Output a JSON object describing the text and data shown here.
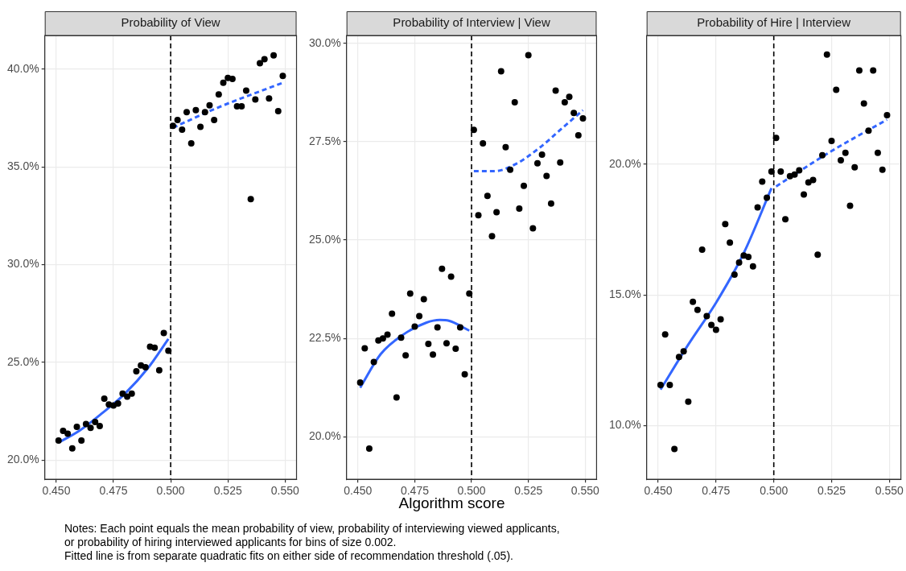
{
  "chart_data": [
    {
      "type": "scatter",
      "title": "Probability of View",
      "xlim": [
        0.445,
        0.555
      ],
      "ylim": [
        19.02,
        41.72
      ],
      "xticks": [
        {
          "value": 0.45,
          "label": "0.450"
        },
        {
          "value": 0.475,
          "label": "0.475"
        },
        {
          "value": 0.5,
          "label": "0.500"
        },
        {
          "value": 0.525,
          "label": "0.525"
        },
        {
          "value": 0.55,
          "label": "0.550"
        }
      ],
      "yticks": [
        {
          "value": 20,
          "label": "20.0%"
        },
        {
          "value": 25,
          "label": "25.0%"
        },
        {
          "value": 30,
          "label": "30.0%"
        },
        {
          "value": 35,
          "label": "35.0%"
        },
        {
          "value": 40,
          "label": "40.0%"
        }
      ],
      "grid": true,
      "legend": false,
      "marker": "circle",
      "ref_lines": [
        {
          "axis": "x",
          "value": 0.5,
          "color": "#000000",
          "line_style": "dashed"
        }
      ],
      "series": [
        {
          "color": "#000000",
          "x": [
            0.451,
            0.453,
            0.455,
            0.457,
            0.459,
            0.461,
            0.463,
            0.465,
            0.467,
            0.469,
            0.471,
            0.473,
            0.475,
            0.477,
            0.479,
            0.481,
            0.483,
            0.485,
            0.487,
            0.489,
            0.491,
            0.493,
            0.495,
            0.497,
            0.499,
            0.501,
            0.503,
            0.505,
            0.507,
            0.509,
            0.511,
            0.513,
            0.515,
            0.517,
            0.519,
            0.521,
            0.523,
            0.525,
            0.527,
            0.529,
            0.531,
            0.533,
            0.535,
            0.537,
            0.539,
            0.541,
            0.543,
            0.545,
            0.547,
            0.549
          ],
          "values": [
            21.0,
            21.5,
            21.35,
            20.6,
            21.7,
            21.0,
            21.85,
            21.65,
            21.95,
            21.75,
            23.15,
            22.85,
            22.8,
            22.9,
            23.4,
            23.25,
            23.4,
            24.55,
            24.85,
            24.75,
            25.8,
            25.75,
            24.6,
            26.5,
            25.6,
            37.1,
            37.4,
            36.9,
            37.8,
            36.2,
            37.9,
            37.05,
            37.8,
            38.15,
            37.4,
            38.7,
            39.3,
            39.55,
            39.5,
            38.1,
            38.1,
            38.9,
            33.35,
            38.45,
            40.3,
            40.5,
            38.5,
            40.7,
            37.85,
            39.65
          ]
        },
        {
          "type": "line",
          "color": "#3366ff",
          "marker": "none",
          "line_style": "solid",
          "x": [
            0.451,
            0.46,
            0.47,
            0.48,
            0.49,
            0.499
          ],
          "values": [
            20.9,
            21.5,
            22.4,
            23.4,
            24.7,
            26.2
          ]
        },
        {
          "type": "line",
          "color": "#3366ff",
          "marker": "none",
          "line_style": "dashed",
          "x": [
            0.501,
            0.52,
            0.549
          ],
          "values": [
            37.0,
            38.0,
            39.3
          ]
        }
      ]
    },
    {
      "type": "scatter",
      "title": "Probability of Interview | View",
      "xlabel": "Algorithm score",
      "xlim": [
        0.445,
        0.555
      ],
      "ylim": [
        18.92,
        30.2
      ],
      "xticks": [
        {
          "value": 0.45,
          "label": "0.450"
        },
        {
          "value": 0.475,
          "label": "0.475"
        },
        {
          "value": 0.5,
          "label": "0.500"
        },
        {
          "value": 0.525,
          "label": "0.525"
        },
        {
          "value": 0.55,
          "label": "0.550"
        }
      ],
      "yticks": [
        {
          "value": 20,
          "label": "20.0%"
        },
        {
          "value": 22.5,
          "label": "22.5%"
        },
        {
          "value": 25,
          "label": "25.0%"
        },
        {
          "value": 27.5,
          "label": "27.5%"
        },
        {
          "value": 30,
          "label": "30.0%"
        }
      ],
      "grid": true,
      "legend": false,
      "marker": "circle",
      "annotations": [
        "Notes: Each point equals the mean probability of view, probability of interviewing viewed applicants,\nor probability of hiring interviewed applicants for bins of size 0.002.\nFitted line is from separate quadratic fits on either side of recommendation threshold (.05)."
      ],
      "ref_lines": [
        {
          "axis": "x",
          "value": 0.5,
          "color": "#000000",
          "line_style": "dashed"
        }
      ],
      "series": [
        {
          "color": "#000000",
          "x": [
            0.451,
            0.453,
            0.455,
            0.457,
            0.459,
            0.461,
            0.463,
            0.465,
            0.467,
            0.469,
            0.471,
            0.473,
            0.475,
            0.477,
            0.479,
            0.481,
            0.483,
            0.485,
            0.487,
            0.489,
            0.491,
            0.493,
            0.495,
            0.497,
            0.499,
            0.501,
            0.503,
            0.505,
            0.507,
            0.509,
            0.511,
            0.513,
            0.515,
            0.517,
            0.519,
            0.521,
            0.523,
            0.525,
            0.527,
            0.529,
            0.531,
            0.533,
            0.535,
            0.537,
            0.539,
            0.541,
            0.543,
            0.545,
            0.547,
            0.549
          ],
          "values": [
            21.38,
            22.25,
            19.7,
            21.9,
            22.45,
            22.5,
            22.6,
            23.13,
            21.0,
            22.52,
            22.07,
            23.64,
            22.8,
            23.07,
            23.5,
            22.36,
            22.09,
            22.78,
            24.27,
            22.38,
            24.07,
            22.24,
            22.78,
            21.59,
            23.64,
            27.8,
            25.63,
            27.46,
            26.12,
            25.1,
            25.71,
            29.29,
            27.36,
            26.79,
            28.5,
            25.8,
            26.38,
            29.7,
            25.3,
            26.95,
            27.17,
            26.63,
            25.93,
            28.8,
            26.97,
            28.5,
            28.64,
            28.23,
            27.66,
            28.09
          ]
        },
        {
          "type": "line",
          "color": "#3366ff",
          "marker": "none",
          "line_style": "solid",
          "x": [
            0.451,
            0.46,
            0.47,
            0.48,
            0.486,
            0.49,
            0.499
          ],
          "values": [
            21.25,
            22.1,
            22.6,
            22.9,
            22.97,
            22.95,
            22.7
          ]
        },
        {
          "type": "line",
          "color": "#3366ff",
          "marker": "none",
          "line_style": "dashed",
          "x": [
            0.501,
            0.51,
            0.52,
            0.53,
            0.54,
            0.549
          ],
          "values": [
            26.75,
            26.75,
            26.95,
            27.35,
            27.85,
            28.3
          ]
        }
      ]
    },
    {
      "type": "scatter",
      "title": "Probability of Hire | Interview",
      "xlim": [
        0.445,
        0.555
      ],
      "ylim": [
        7.95,
        24.92
      ],
      "xticks": [
        {
          "value": 0.45,
          "label": "0.450"
        },
        {
          "value": 0.475,
          "label": "0.475"
        },
        {
          "value": 0.5,
          "label": "0.500"
        },
        {
          "value": 0.525,
          "label": "0.525"
        },
        {
          "value": 0.55,
          "label": "0.550"
        }
      ],
      "yticks": [
        {
          "value": 10,
          "label": "10.0%"
        },
        {
          "value": 15,
          "label": "15.0%"
        },
        {
          "value": 20,
          "label": "20.0%"
        }
      ],
      "grid": true,
      "legend": false,
      "marker": "circle",
      "ref_lines": [
        {
          "axis": "x",
          "value": 0.5,
          "color": "#000000",
          "line_style": "dashed"
        }
      ],
      "series": [
        {
          "color": "#000000",
          "x": [
            0.451,
            0.453,
            0.455,
            0.457,
            0.459,
            0.461,
            0.463,
            0.465,
            0.467,
            0.469,
            0.471,
            0.473,
            0.475,
            0.477,
            0.479,
            0.481,
            0.483,
            0.485,
            0.487,
            0.489,
            0.491,
            0.493,
            0.495,
            0.497,
            0.499,
            0.501,
            0.503,
            0.505,
            0.507,
            0.509,
            0.511,
            0.513,
            0.515,
            0.517,
            0.519,
            0.521,
            0.523,
            0.525,
            0.527,
            0.529,
            0.531,
            0.533,
            0.535,
            0.537,
            0.539,
            0.541,
            0.543,
            0.545,
            0.547,
            0.549
          ],
          "values": [
            11.56,
            13.49,
            11.56,
            9.11,
            12.63,
            12.84,
            10.92,
            14.74,
            14.43,
            16.73,
            14.19,
            13.85,
            13.67,
            14.07,
            17.71,
            17.0,
            15.78,
            16.24,
            16.51,
            16.45,
            16.09,
            18.35,
            19.33,
            18.72,
            19.72,
            21.0,
            19.72,
            17.89,
            19.54,
            19.6,
            19.76,
            18.84,
            19.3,
            19.39,
            16.54,
            20.34,
            24.19,
            20.89,
            22.84,
            20.15,
            20.43,
            18.41,
            19.88,
            23.58,
            22.32,
            21.28,
            23.58,
            20.43,
            19.79,
            21.87
          ]
        },
        {
          "type": "line",
          "color": "#3366ff",
          "marker": "none",
          "line_style": "solid",
          "x": [
            0.451,
            0.463,
            0.475,
            0.487,
            0.499
          ],
          "values": [
            11.38,
            13.1,
            14.7,
            16.6,
            19.08
          ]
        },
        {
          "type": "line",
          "color": "#3366ff",
          "marker": "none",
          "line_style": "dashed",
          "x": [
            0.501,
            0.525,
            0.549
          ],
          "values": [
            19.15,
            20.5,
            21.7
          ]
        }
      ]
    }
  ]
}
